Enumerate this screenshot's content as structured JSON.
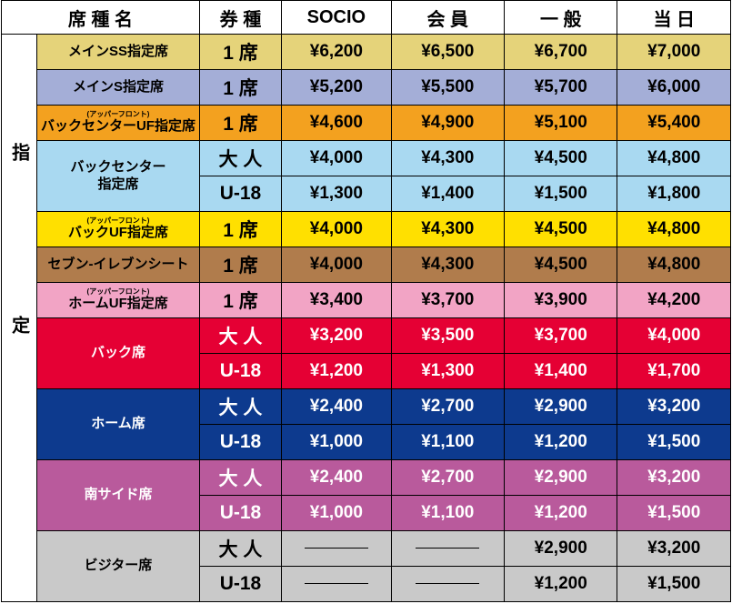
{
  "side_label": "指定",
  "header": [
    "席 種 名",
    "券 種",
    "SOCIO",
    "会 員",
    "一 般",
    "当 日"
  ],
  "groups": [
    {
      "name": "メインSS指定席",
      "color": "#e5d37a",
      "text_color": "#000000",
      "tickets": [
        {
          "type": "1 席",
          "prices": [
            "¥6,200",
            "¥6,500",
            "¥6,700",
            "¥7,000"
          ]
        }
      ]
    },
    {
      "name": "メインS指定席",
      "color": "#a4aed7",
      "text_color": "#000000",
      "tickets": [
        {
          "type": "1 席",
          "prices": [
            "¥5,200",
            "¥5,500",
            "¥5,700",
            "¥6,000"
          ]
        }
      ]
    },
    {
      "name": "バックセンターUF指定席",
      "subtitle": "(アッパーフロント)",
      "color": "#f3a11f",
      "text_color": "#000000",
      "tickets": [
        {
          "type": "1 席",
          "prices": [
            "¥4,600",
            "¥4,900",
            "¥5,100",
            "¥5,400"
          ]
        }
      ]
    },
    {
      "name": "バックセンター\n指定席",
      "color": "#a9d9f1",
      "text_color": "#000000",
      "tickets": [
        {
          "type": "大 人",
          "prices": [
            "¥4,000",
            "¥4,300",
            "¥4,500",
            "¥4,800"
          ]
        },
        {
          "type": "U-18",
          "prices": [
            "¥1,300",
            "¥1,400",
            "¥1,500",
            "¥1,800"
          ]
        }
      ]
    },
    {
      "name": "バックUF指定席",
      "subtitle": "(アッパーフロント)",
      "color": "#ffe000",
      "text_color": "#000000",
      "tickets": [
        {
          "type": "1 席",
          "prices": [
            "¥4,000",
            "¥4,300",
            "¥4,500",
            "¥4,800"
          ]
        }
      ]
    },
    {
      "name": "セブン-イレブンシート",
      "color": "#b07c4c",
      "text_color": "#000000",
      "tickets": [
        {
          "type": "1 席",
          "prices": [
            "¥4,000",
            "¥4,300",
            "¥4,500",
            "¥4,800"
          ]
        }
      ]
    },
    {
      "name": "ホームUF指定席",
      "subtitle": "(アッパーフロント)",
      "color": "#f2a4c5",
      "text_color": "#000000",
      "tickets": [
        {
          "type": "1 席",
          "prices": [
            "¥3,400",
            "¥3,700",
            "¥3,900",
            "¥4,200"
          ]
        }
      ]
    },
    {
      "name": "バック席",
      "color": "#e50034",
      "text_color": "#ffffff",
      "tickets": [
        {
          "type": "大 人",
          "prices": [
            "¥3,200",
            "¥3,500",
            "¥3,700",
            "¥4,000"
          ]
        },
        {
          "type": "U-18",
          "prices": [
            "¥1,200",
            "¥1,300",
            "¥1,400",
            "¥1,700"
          ]
        }
      ]
    },
    {
      "name": "ホーム席",
      "color": "#0d3a8e",
      "text_color": "#ffffff",
      "tickets": [
        {
          "type": "大 人",
          "prices": [
            "¥2,400",
            "¥2,700",
            "¥2,900",
            "¥3,200"
          ]
        },
        {
          "type": "U-18",
          "prices": [
            "¥1,000",
            "¥1,100",
            "¥1,200",
            "¥1,500"
          ]
        }
      ]
    },
    {
      "name": "南サイド席",
      "color": "#b95a9c",
      "text_color": "#ffffff",
      "tickets": [
        {
          "type": "大 人",
          "prices": [
            "¥2,400",
            "¥2,700",
            "¥2,900",
            "¥3,200"
          ]
        },
        {
          "type": "U-18",
          "prices": [
            "¥1,000",
            "¥1,100",
            "¥1,200",
            "¥1,500"
          ]
        }
      ]
    },
    {
      "name": "ビジター席",
      "color": "#c9c9c9",
      "text_color": "#000000",
      "tickets": [
        {
          "type": "大 人",
          "prices": [
            null,
            null,
            "¥2,900",
            "¥3,200"
          ]
        },
        {
          "type": "U-18",
          "prices": [
            null,
            null,
            "¥1,200",
            "¥1,500"
          ]
        }
      ]
    }
  ]
}
